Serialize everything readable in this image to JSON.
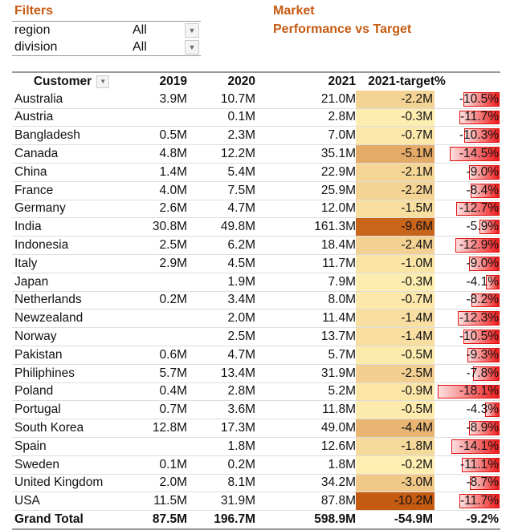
{
  "filters": {
    "title": "Filters",
    "items": [
      {
        "label": "region",
        "value": "All"
      },
      {
        "label": "division",
        "value": "All"
      }
    ]
  },
  "report_title": {
    "line1": "Market",
    "line2": "Performance vs Target"
  },
  "colors": {
    "title": "#c55a11",
    "heat_low": "#fff0b3",
    "heat_high": "#c55a11",
    "bar": "#ee1c1c"
  },
  "table": {
    "headers": [
      "Customer",
      "2019",
      "2020",
      "2021",
      "2021-target",
      "%"
    ],
    "rows": [
      [
        "Australia",
        "3.9M",
        "10.7M",
        "21.0M",
        "-2.2M",
        "-10.5%"
      ],
      [
        "Austria",
        "",
        "0.1M",
        "2.8M",
        "-0.3M",
        "-11.7%"
      ],
      [
        "Bangladesh",
        "0.5M",
        "2.3M",
        "7.0M",
        "-0.7M",
        "-10.3%"
      ],
      [
        "Canada",
        "4.8M",
        "12.2M",
        "35.1M",
        "-5.1M",
        "-14.5%"
      ],
      [
        "China",
        "1.4M",
        "5.4M",
        "22.9M",
        "-2.1M",
        "-9.0%"
      ],
      [
        "France",
        "4.0M",
        "7.5M",
        "25.9M",
        "-2.2M",
        "-8.4%"
      ],
      [
        "Germany",
        "2.6M",
        "4.7M",
        "12.0M",
        "-1.5M",
        "-12.7%"
      ],
      [
        "India",
        "30.8M",
        "49.8M",
        "161.3M",
        "-9.6M",
        "-5.9%"
      ],
      [
        "Indonesia",
        "2.5M",
        "6.2M",
        "18.4M",
        "-2.4M",
        "-12.9%"
      ],
      [
        "Italy",
        "2.9M",
        "4.5M",
        "11.7M",
        "-1.0M",
        "-9.0%"
      ],
      [
        "Japan",
        "",
        "1.9M",
        "7.9M",
        "-0.3M",
        "-4.1%"
      ],
      [
        "Netherlands",
        "0.2M",
        "3.4M",
        "8.0M",
        "-0.7M",
        "-8.2%"
      ],
      [
        "Newzealand",
        "",
        "2.0M",
        "11.4M",
        "-1.4M",
        "-12.3%"
      ],
      [
        "Norway",
        "",
        "2.5M",
        "13.7M",
        "-1.4M",
        "-10.5%"
      ],
      [
        "Pakistan",
        "0.6M",
        "4.7M",
        "5.7M",
        "-0.5M",
        "-9.3%"
      ],
      [
        "Philiphines",
        "5.7M",
        "13.4M",
        "31.9M",
        "-2.5M",
        "-7.8%"
      ],
      [
        "Poland",
        "0.4M",
        "2.8M",
        "5.2M",
        "-0.9M",
        "-18.1%"
      ],
      [
        "Portugal",
        "0.7M",
        "3.6M",
        "11.8M",
        "-0.5M",
        "-4.3%"
      ],
      [
        "South Korea",
        "12.8M",
        "17.3M",
        "49.0M",
        "-4.4M",
        "-8.9%"
      ],
      [
        "Spain",
        "",
        "1.8M",
        "12.6M",
        "-1.8M",
        "-14.1%"
      ],
      [
        "Sweden",
        "0.1M",
        "0.2M",
        "1.8M",
        "-0.2M",
        "-11.1%"
      ],
      [
        "United Kingdom",
        "2.0M",
        "8.1M",
        "34.2M",
        "-3.0M",
        "-8.7%"
      ],
      [
        "USA",
        "11.5M",
        "31.9M",
        "87.8M",
        "-10.2M",
        "-11.7%"
      ]
    ],
    "total": [
      "Grand Total",
      "87.5M",
      "196.7M",
      "598.9M",
      "-54.9M",
      "-9.2%"
    ]
  }
}
